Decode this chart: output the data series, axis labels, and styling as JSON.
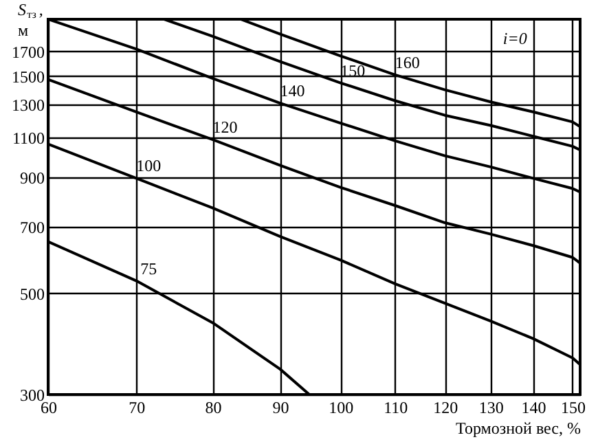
{
  "chart_data": {
    "type": "line",
    "xlabel": "Тормозной вес, %",
    "ylabel": "S$_{тз}$, м",
    "annotations": [
      "i=0"
    ],
    "xlim": [
      60,
      152
    ],
    "xticks": [
      60,
      70,
      80,
      90,
      100,
      110,
      120,
      130,
      140,
      150
    ],
    "ylim": [
      300,
      2000
    ],
    "yticks": [
      300,
      500,
      700,
      900,
      1100,
      1300,
      1500,
      1700
    ],
    "grid": true,
    "log": "xy",
    "line_style": "solid",
    "marker": "none",
    "series": [
      {
        "name": "75",
        "color": "#000000",
        "x": [
          60,
          70,
          80,
          90,
          94.7
        ],
        "values": [
          650,
          533,
          431,
          341,
          300
        ]
      },
      {
        "name": "100",
        "color": "#000000",
        "x": [
          60,
          70,
          80,
          90,
          100,
          110,
          120,
          130,
          140,
          150,
          152
        ],
        "values": [
          1064,
          895,
          770,
          667,
          592,
          525,
          476,
          435,
          398,
          361,
          349
        ]
      },
      {
        "name": "120",
        "color": "#000000",
        "x": [
          60,
          70,
          80,
          90,
          100,
          110,
          120,
          130,
          140,
          150,
          152
        ],
        "values": [
          1475,
          1252,
          1088,
          955,
          855,
          780,
          715,
          675,
          637,
          600,
          583
        ]
      },
      {
        "name": "140",
        "color": "#000000",
        "x": [
          60,
          70,
          80,
          90,
          100,
          110,
          120,
          130,
          140,
          150,
          152
        ],
        "values": [
          2000,
          1720,
          1483,
          1308,
          1183,
          1082,
          1003,
          948,
          895,
          850,
          835
        ]
      },
      {
        "name": "150",
        "color": "#000000",
        "x": [
          73.5,
          80,
          90,
          100,
          110,
          120,
          130,
          140,
          150,
          152
        ],
        "values": [
          2000,
          1834,
          1614,
          1450,
          1325,
          1231,
          1169,
          1107,
          1052,
          1033
        ]
      },
      {
        "name": "160",
        "color": "#000000",
        "x": [
          84,
          90,
          100,
          110,
          120,
          130,
          140,
          150,
          152
        ],
        "values": [
          2000,
          1855,
          1662,
          1510,
          1400,
          1317,
          1252,
          1190,
          1162
        ]
      }
    ]
  }
}
